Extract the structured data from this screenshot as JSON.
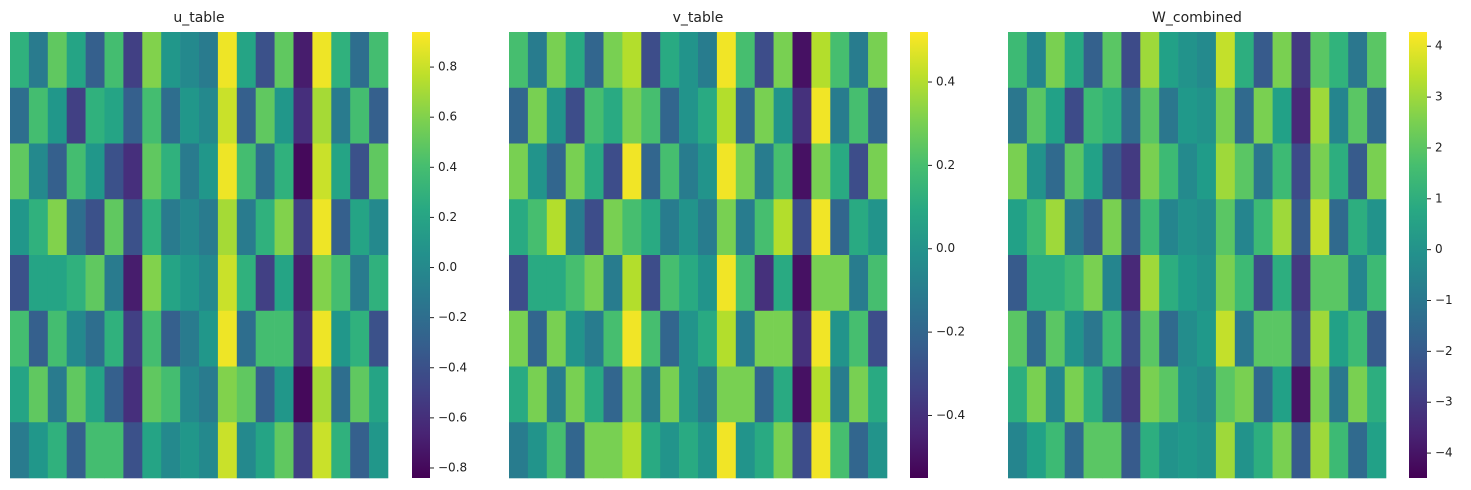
{
  "chart_data": [
    {
      "type": "heatmap",
      "title": "u_table",
      "colormap": "viridis",
      "ylim": [
        -0.84,
        0.94
      ],
      "yticks": [
        0.8,
        0.6,
        0.4,
        0.2,
        {
          "value": 0,
          "label": "0.0"
        },
        {
          "value": -0.2,
          "label": "−0.2"
        },
        {
          "value": -0.4,
          "label": "−0.4"
        },
        {
          "value": -0.6,
          "label": "−0.6"
        },
        {
          "value": -0.8,
          "label": "−0.8"
        }
      ],
      "values": [
        [
          0.3,
          -0.1,
          0.5,
          0.2,
          -0.3,
          0.4,
          -0.5,
          0.6,
          0.1,
          0.0,
          -0.1,
          0.9,
          0.2,
          -0.4,
          0.5,
          -0.7,
          0.9,
          0.3,
          -0.2,
          0.4
        ],
        [
          -0.2,
          0.4,
          0.1,
          -0.5,
          0.3,
          0.2,
          -0.3,
          0.4,
          -0.2,
          0.1,
          0.0,
          0.8,
          -0.3,
          0.5,
          0.1,
          -0.6,
          0.7,
          -0.1,
          0.4,
          -0.3
        ],
        [
          0.5,
          0.0,
          -0.3,
          0.4,
          0.1,
          -0.4,
          -0.6,
          0.5,
          0.3,
          -0.1,
          0.1,
          0.9,
          0.4,
          -0.2,
          0.3,
          -0.8,
          0.8,
          0.2,
          -0.4,
          0.5
        ],
        [
          0.1,
          0.3,
          0.6,
          -0.2,
          -0.4,
          0.5,
          -0.4,
          0.3,
          -0.1,
          0.0,
          -0.1,
          0.7,
          -0.1,
          0.3,
          0.6,
          -0.5,
          0.9,
          -0.3,
          0.2,
          0.0
        ],
        [
          -0.4,
          0.2,
          0.2,
          0.3,
          0.5,
          -0.1,
          -0.7,
          0.6,
          0.2,
          0.1,
          0.0,
          0.8,
          0.3,
          -0.5,
          0.2,
          -0.7,
          0.6,
          0.4,
          -0.1,
          0.3
        ],
        [
          0.4,
          -0.3,
          0.4,
          0.0,
          -0.2,
          0.3,
          -0.5,
          0.4,
          -0.3,
          -0.1,
          0.1,
          0.9,
          -0.2,
          0.4,
          0.4,
          -0.6,
          0.9,
          0.1,
          0.3,
          -0.4
        ],
        [
          0.2,
          0.5,
          -0.1,
          0.5,
          0.2,
          -0.3,
          -0.6,
          0.5,
          0.4,
          0.0,
          -0.1,
          0.6,
          0.5,
          -0.3,
          0.1,
          -0.8,
          0.7,
          -0.2,
          0.5,
          0.2
        ],
        [
          -0.1,
          0.1,
          0.3,
          -0.3,
          0.4,
          0.4,
          -0.4,
          0.2,
          0.0,
          0.1,
          0.0,
          0.8,
          0.0,
          0.2,
          0.5,
          -0.5,
          0.8,
          0.3,
          -0.3,
          0.1
        ]
      ]
    },
    {
      "type": "heatmap",
      "title": "v_table",
      "colormap": "viridis",
      "ylim": [
        -0.55,
        0.52
      ],
      "yticks": [
        0.4,
        0.2,
        {
          "value": 0,
          "label": "0.0"
        },
        {
          "value": -0.2,
          "label": "−0.2"
        },
        {
          "value": -0.4,
          "label": "−0.4"
        }
      ],
      "values": [
        [
          0.2,
          -0.1,
          0.3,
          0.1,
          -0.2,
          0.3,
          0.4,
          -0.3,
          0.1,
          0.0,
          -0.1,
          0.5,
          0.2,
          -0.3,
          0.3,
          -0.5,
          0.4,
          0.2,
          -0.1,
          0.3
        ],
        [
          -0.2,
          0.3,
          0.0,
          -0.3,
          0.2,
          0.1,
          0.3,
          0.2,
          -0.2,
          0.0,
          0.1,
          0.4,
          -0.2,
          0.3,
          0.0,
          -0.4,
          0.5,
          -0.1,
          0.2,
          -0.2
        ],
        [
          0.3,
          0.0,
          -0.2,
          0.3,
          0.1,
          -0.3,
          0.5,
          -0.2,
          0.2,
          -0.1,
          0.0,
          0.5,
          0.3,
          -0.1,
          0.2,
          -0.5,
          0.3,
          0.1,
          -0.3,
          0.3
        ],
        [
          0.1,
          0.2,
          0.4,
          -0.1,
          -0.3,
          0.3,
          0.2,
          0.1,
          -0.1,
          0.0,
          -0.1,
          0.3,
          -0.1,
          0.2,
          0.4,
          -0.3,
          0.5,
          -0.2,
          0.1,
          0.0
        ],
        [
          -0.3,
          0.1,
          0.1,
          0.2,
          0.3,
          -0.1,
          0.4,
          -0.3,
          0.2,
          0.1,
          0.0,
          0.5,
          0.2,
          -0.4,
          0.1,
          -0.5,
          0.3,
          0.3,
          -0.1,
          0.2
        ],
        [
          0.3,
          -0.2,
          0.3,
          0.0,
          -0.1,
          0.2,
          0.5,
          0.2,
          -0.2,
          0.0,
          0.1,
          0.4,
          -0.1,
          0.3,
          0.3,
          -0.4,
          0.5,
          0.0,
          0.2,
          -0.3
        ],
        [
          0.1,
          0.3,
          -0.1,
          0.3,
          0.1,
          -0.2,
          0.3,
          -0.1,
          0.3,
          0.0,
          -0.1,
          0.3,
          0.3,
          -0.2,
          0.1,
          -0.5,
          0.4,
          -0.1,
          0.3,
          0.1
        ],
        [
          -0.1,
          0.0,
          0.2,
          -0.2,
          0.3,
          0.3,
          0.4,
          0.1,
          0.0,
          0.1,
          0.0,
          0.5,
          0.0,
          0.1,
          0.3,
          -0.3,
          0.5,
          0.2,
          -0.2,
          0.0
        ]
      ]
    },
    {
      "type": "heatmap",
      "title": "W_combined",
      "colormap": "viridis",
      "ylim": [
        -4.49,
        4.28
      ],
      "yticks": [
        4,
        3,
        2,
        1,
        0,
        {
          "value": -1,
          "label": "−1"
        },
        {
          "value": -2,
          "label": "−2"
        },
        {
          "value": -3,
          "label": "−3"
        },
        {
          "value": -4,
          "label": "−4"
        }
      ],
      "values": [
        [
          1.5,
          -0.5,
          2.5,
          0.8,
          -1.8,
          2.0,
          -2.5,
          3.0,
          0.5,
          0.0,
          -0.3,
          3.5,
          1.0,
          -2.0,
          2.5,
          -3.0,
          2.0,
          1.2,
          -1.0,
          2.0
        ],
        [
          -1.0,
          2.0,
          0.5,
          -2.5,
          1.5,
          1.0,
          -1.5,
          2.0,
          -1.0,
          0.2,
          0.0,
          2.5,
          -1.5,
          2.5,
          0.5,
          -3.5,
          3.0,
          -0.5,
          2.0,
          -1.5
        ],
        [
          2.5,
          0.0,
          -1.5,
          2.0,
          0.5,
          -2.0,
          -3.0,
          2.5,
          1.5,
          -0.3,
          0.3,
          3.0,
          2.0,
          -1.0,
          1.5,
          -2.5,
          2.5,
          1.0,
          -2.0,
          2.5
        ],
        [
          0.5,
          1.5,
          3.0,
          -1.0,
          -2.0,
          2.5,
          -2.0,
          1.5,
          -0.5,
          0.0,
          -0.2,
          2.0,
          -0.5,
          1.5,
          3.0,
          -2.0,
          3.5,
          -1.5,
          1.0,
          0.0
        ],
        [
          -2.0,
          1.0,
          1.0,
          1.5,
          2.5,
          -0.5,
          -3.5,
          3.0,
          1.0,
          0.3,
          0.0,
          2.5,
          1.5,
          -2.5,
          1.0,
          -3.0,
          2.0,
          2.0,
          -0.5,
          1.5
        ],
        [
          2.0,
          -1.5,
          2.0,
          0.0,
          -1.0,
          1.5,
          -2.5,
          2.0,
          -1.5,
          -0.2,
          0.2,
          3.5,
          -1.0,
          2.0,
          2.0,
          -2.5,
          3.0,
          0.5,
          1.5,
          -2.0
        ],
        [
          1.0,
          2.5,
          -0.5,
          2.5,
          1.0,
          -1.5,
          -3.0,
          2.5,
          2.0,
          0.0,
          -0.3,
          2.0,
          2.5,
          -1.5,
          0.5,
          -4.0,
          2.5,
          -1.0,
          2.5,
          1.0
        ],
        [
          -0.5,
          0.5,
          1.5,
          -1.5,
          2.0,
          2.0,
          -2.0,
          1.0,
          0.0,
          0.2,
          0.0,
          3.0,
          0.0,
          1.0,
          2.5,
          -2.0,
          3.0,
          1.5,
          -1.5,
          0.5
        ]
      ]
    }
  ]
}
